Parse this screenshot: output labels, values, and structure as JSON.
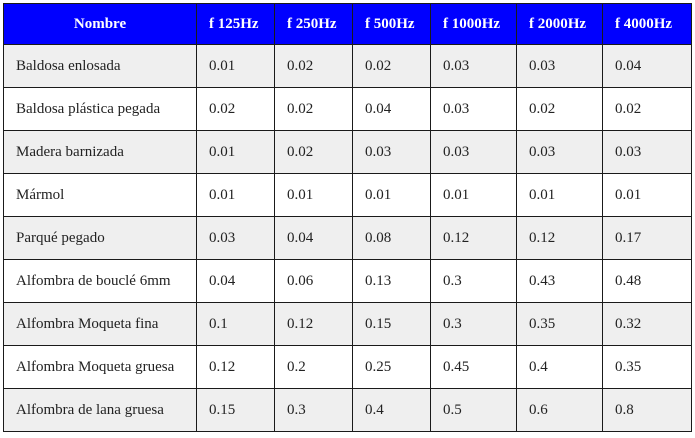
{
  "table": {
    "columns": [
      "Nombre",
      "f 125Hz",
      "f 250Hz",
      "f 500Hz",
      "f 1000Hz",
      "f 2000Hz",
      "f 4000Hz"
    ],
    "rows": [
      [
        "Baldosa enlosada",
        "0.01",
        "0.02",
        "0.02",
        "0.03",
        "0.03",
        "0.04"
      ],
      [
        "Baldosa plástica pegada",
        "0.02",
        "0.02",
        "0.04",
        "0.03",
        "0.02",
        "0.02"
      ],
      [
        "Madera barnizada",
        "0.01",
        "0.02",
        "0.03",
        "0.03",
        "0.03",
        "0.03"
      ],
      [
        "Mármol",
        "0.01",
        "0.01",
        "0.01",
        "0.01",
        "0.01",
        "0.01"
      ],
      [
        "Parqué pegado",
        "0.03",
        "0.04",
        "0.08",
        "0.12",
        "0.12",
        "0.17"
      ],
      [
        "Alfombra de bouclé 6mm",
        "0.04",
        "0.06",
        "0.13",
        "0.3",
        "0.43",
        "0.48"
      ],
      [
        "Alfombra Moqueta fina",
        "0.1",
        "0.12",
        "0.15",
        "0.3",
        "0.35",
        "0.32"
      ],
      [
        "Alfombra Moqueta gruesa",
        "0.12",
        "0.2",
        "0.25",
        "0.45",
        "0.4",
        "0.35"
      ],
      [
        "Alfombra de lana gruesa",
        "0.15",
        "0.3",
        "0.4",
        "0.5",
        "0.6",
        "0.8"
      ]
    ]
  },
  "colors": {
    "header_bg": "#0000ff",
    "header_text": "#ffffff",
    "row_alt_bg": "#efefef",
    "row_bg": "#ffffff",
    "border": "#1a1a1a"
  }
}
